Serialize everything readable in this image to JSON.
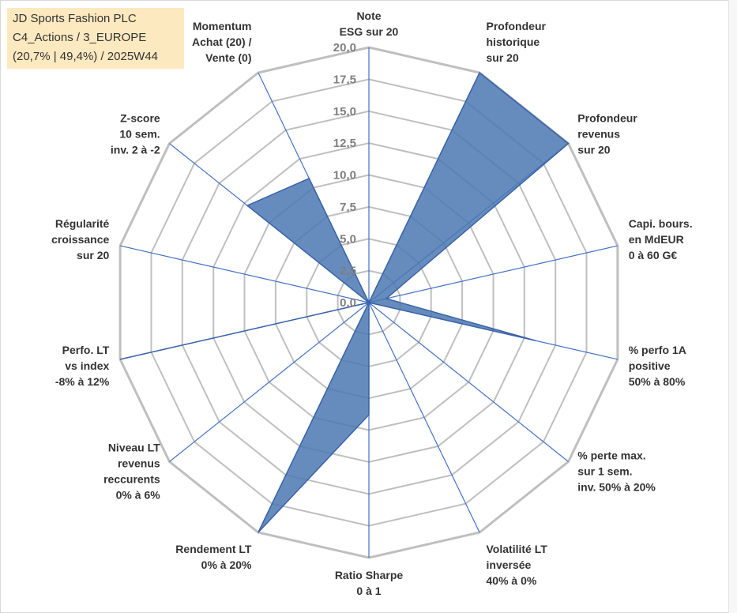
{
  "title_box": {
    "line1": "JD Sports Fashion PLC",
    "line2": "C4_Actions / 3_EUROPE",
    "line3": "(20,7% | 49,4%) / 2025W44"
  },
  "colors": {
    "grid": "#bfbfbf",
    "spoke": "#4472c4",
    "fill": "#4a78b2",
    "outline": "#3b63a8",
    "title_bg": "#fde9bf"
  },
  "chart_data": {
    "type": "radar",
    "rmin": 0,
    "rmax": 20,
    "ticks": [
      "0,0",
      "2,5",
      "5,0",
      "7,5",
      "10,0",
      "12,5",
      "15,0",
      "17,5",
      "20,0"
    ],
    "tick_values": [
      0,
      2.5,
      5,
      7.5,
      10,
      12.5,
      15,
      17.5,
      20
    ],
    "grid": true,
    "legend": "none",
    "axes": [
      [
        "Note",
        "ESG sur 20"
      ],
      [
        "Profondeur",
        "historique",
        "sur 20"
      ],
      [
        "Profondeur",
        "revenus",
        "sur 20"
      ],
      [
        "Capi. bours.",
        "en MdEUR",
        "0 à 60 G€"
      ],
      [
        "% perfo 1A",
        "positive",
        "50% à 80%"
      ],
      [
        "% perte max.",
        "sur 1 sem.",
        "inv. 50% à 20%"
      ],
      [
        "Volatilité LT",
        "inversée",
        "40% à 0%"
      ],
      [
        "Ratio Sharpe",
        "0 à 1"
      ],
      [
        "Rendement LT",
        "0% à 20%"
      ],
      [
        "Niveau LT",
        "revenus",
        "reccurents",
        "0% à 6%"
      ],
      [
        "Perfo. LT",
        "vs index",
        "-8% à 12%"
      ],
      [
        "Régularité",
        "croissance",
        "sur 20"
      ],
      [
        "Z-score",
        "10 sem.",
        "inv. 2 à -2"
      ],
      [
        "Momentum",
        "Achat (20) /",
        "Vente (0)"
      ]
    ],
    "values": [
      0,
      20,
      20,
      1.4,
      13.4,
      0,
      0,
      8.8,
      20,
      0,
      20,
      0,
      12.2,
      10.8
    ]
  }
}
